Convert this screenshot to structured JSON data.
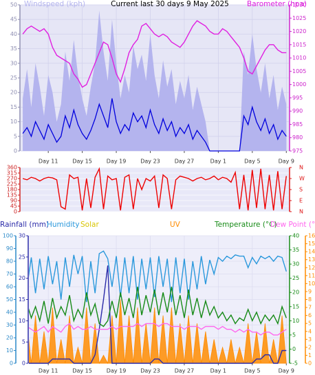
{
  "chart_data": [
    {
      "type": "line",
      "title": "Current last 30 days 9 May 2025",
      "x": [
        -1,
        -0.5,
        0,
        0.5,
        1,
        1.5,
        2,
        2.5,
        3,
        3.5,
        4,
        4.5,
        5,
        5.5,
        6,
        6.5,
        7,
        7.5,
        8,
        8.5,
        9,
        9.5,
        10,
        10.5,
        11,
        11.5,
        12,
        12.5,
        13,
        13.5,
        14,
        14.5,
        15,
        15.5,
        16,
        16.5,
        17,
        17.5,
        18,
        18.5,
        19,
        19.5,
        20,
        20.5,
        21,
        21.5,
        22,
        22.5,
        23,
        23.5,
        24,
        24.5,
        25,
        25.5,
        26,
        26.5,
        27,
        27.5,
        28,
        28.5,
        29,
        29.5,
        30
      ],
      "xlim": [
        -1.25,
        30.3
      ],
      "xticks": [
        {
          "value": 2,
          "label": "Day 11"
        },
        {
          "value": 6,
          "label": "Day 15"
        },
        {
          "value": 10,
          "label": "Day 19"
        },
        {
          "value": 14,
          "label": "Day 23"
        },
        {
          "value": 18,
          "label": "Day 27"
        },
        {
          "value": 22,
          "label": "Day 1"
        },
        {
          "value": 26,
          "label": "Day 5"
        },
        {
          "value": 30,
          "label": "Day 9"
        }
      ],
      "ylim": [
        0,
        50
      ],
      "yticks": [
        0,
        5,
        10,
        15,
        20,
        25,
        30,
        35,
        40,
        45,
        50
      ],
      "y2lim": [
        975,
        1030
      ],
      "y2ticks": [
        975,
        980,
        985,
        990,
        995,
        1000,
        1005,
        1010,
        1015,
        1020,
        1025,
        1030
      ],
      "grid": true,
      "series": [
        {
          "name": "Windspeed (kph)",
          "style": "band",
          "color": "#0000dd",
          "max_color": "#b4b4ee",
          "values": [
            6,
            8,
            5,
            10,
            7,
            4,
            9,
            6,
            3,
            5,
            12,
            8,
            14,
            9,
            6,
            4,
            7,
            11,
            16,
            12,
            8,
            18,
            10,
            6,
            9,
            7,
            13,
            10,
            12,
            8,
            14,
            9,
            6,
            11,
            7,
            10,
            5,
            8,
            6,
            9,
            4,
            7,
            5,
            3,
            0,
            0,
            0,
            0,
            0,
            0,
            0,
            0,
            12,
            9,
            15,
            10,
            7,
            11,
            6,
            9,
            4,
            7,
            5
          ],
          "max_values": [
            18,
            28,
            15,
            30,
            22,
            12,
            26,
            20,
            10,
            16,
            34,
            24,
            38,
            26,
            18,
            12,
            22,
            30,
            48,
            34,
            24,
            45,
            30,
            18,
            26,
            20,
            36,
            28,
            33,
            24,
            40,
            26,
            18,
            31,
            22,
            28,
            16,
            24,
            18,
            26,
            14,
            22,
            16,
            10,
            0,
            0,
            0,
            0,
            0,
            0,
            0,
            0,
            34,
            26,
            40,
            28,
            20,
            30,
            18,
            26,
            14,
            22,
            16
          ]
        },
        {
          "name": "Barometer (hpa)",
          "style": "line",
          "axis": "y2",
          "color": "#e020e0",
          "values": [
            1019,
            1021,
            1022,
            1021,
            1020,
            1021,
            1019,
            1014,
            1011,
            1010,
            1009,
            1008,
            1004,
            1002,
            999,
            1000,
            1004,
            1008,
            1012,
            1016,
            1015,
            1010,
            1004,
            1001,
            1006,
            1012,
            1015,
            1017,
            1022,
            1023,
            1021,
            1019,
            1018,
            1019,
            1018,
            1016,
            1015,
            1014,
            1016,
            1019,
            1022,
            1024,
            1023,
            1022,
            1020,
            1019,
            1019,
            1021,
            1020,
            1018,
            1016,
            1014,
            1010,
            1005,
            1004,
            1007,
            1010,
            1013,
            1015,
            1015,
            1013,
            1012,
            1012
          ]
        }
      ]
    },
    {
      "type": "line",
      "x": [
        -1,
        -0.5,
        0,
        0.5,
        1,
        1.5,
        2,
        2.5,
        3,
        3.5,
        4,
        4.5,
        5,
        5.5,
        6,
        6.5,
        7,
        7.5,
        8,
        8.5,
        9,
        9.5,
        10,
        10.5,
        11,
        11.5,
        12,
        12.5,
        13,
        13.5,
        14,
        14.5,
        15,
        15.5,
        16,
        16.5,
        17,
        17.5,
        18,
        18.5,
        19,
        19.5,
        20,
        20.5,
        21,
        21.5,
        22,
        22.5,
        23,
        23.5,
        24,
        24.5,
        25,
        25.5,
        26,
        26.5,
        27,
        27.5,
        28,
        28.5,
        29,
        29.5,
        30
      ],
      "xlim": [
        -1.25,
        30.3
      ],
      "ylim": [
        0,
        360
      ],
      "yticks": [
        0,
        45,
        90,
        135,
        180,
        225,
        270,
        315,
        360
      ],
      "y2lim": [
        0,
        360
      ],
      "y2ticks": [
        {
          "value": 360,
          "label": "N"
        },
        {
          "value": 270,
          "label": "W"
        },
        {
          "value": 180,
          "label": "S"
        },
        {
          "value": 90,
          "label": "E"
        },
        {
          "value": 0,
          "label": "N"
        }
      ],
      "grid": true,
      "series": [
        {
          "style": "line",
          "color": "#ee0000",
          "values": [
            270,
            260,
            280,
            270,
            250,
            270,
            280,
            275,
            260,
            40,
            20,
            300,
            270,
            280,
            10,
            270,
            30,
            280,
            350,
            20,
            290,
            260,
            270,
            10,
            280,
            300,
            20,
            270,
            180,
            270,
            250,
            290,
            30,
            300,
            270,
            20,
            260,
            290,
            280,
            270,
            250,
            270,
            280,
            260,
            270,
            290,
            260,
            280,
            270,
            240,
            320,
            20,
            300,
            10,
            340,
            30,
            350,
            20,
            300,
            10,
            330,
            20,
            290
          ]
        }
      ]
    },
    {
      "type": "line",
      "x": [
        -1,
        -0.5,
        0,
        0.5,
        1,
        1.5,
        2,
        2.5,
        3,
        3.5,
        4,
        4.5,
        5,
        5.5,
        6,
        6.5,
        7,
        7.5,
        8,
        8.5,
        9,
        9.5,
        10,
        10.5,
        11,
        11.5,
        12,
        12.5,
        13,
        13.5,
        14,
        14.5,
        15,
        15.5,
        16,
        16.5,
        17,
        17.5,
        18,
        18.5,
        19,
        19.5,
        20,
        20.5,
        21,
        21.5,
        22,
        22.5,
        23,
        23.5,
        24,
        24.5,
        25,
        25.5,
        26,
        26.5,
        27,
        27.5,
        28,
        28.5,
        29,
        29.5,
        30
      ],
      "xlim": [
        -1.25,
        30.3
      ],
      "xticks": [
        {
          "value": 2,
          "label": "Day 11"
        },
        {
          "value": 6,
          "label": "Day 15"
        },
        {
          "value": 10,
          "label": "Day 19"
        },
        {
          "value": 14,
          "label": "Day 23"
        },
        {
          "value": 18,
          "label": "Day 27"
        },
        {
          "value": 22,
          "label": "Day 1"
        },
        {
          "value": 26,
          "label": "Day 5"
        },
        {
          "value": 30,
          "label": "Day 9"
        }
      ],
      "ylim": [
        0,
        100
      ],
      "yticks": [
        0,
        10,
        20,
        30,
        40,
        50,
        60,
        70,
        80,
        90,
        100
      ],
      "y2lim": [
        0,
        30
      ],
      "y2ticks": [
        0,
        5,
        10,
        15,
        20,
        25,
        30
      ],
      "y3lim": [
        -5,
        40
      ],
      "y3ticks": [
        -5,
        0,
        5,
        10,
        15,
        20,
        25,
        30,
        35,
        40
      ],
      "y4lim": [
        0,
        16
      ],
      "y4ticks": [
        0,
        1,
        2,
        3,
        4,
        5,
        6,
        7,
        8,
        9,
        10,
        11,
        12,
        13,
        14,
        15,
        16
      ],
      "grid": true,
      "annotations": [
        "Solar"
      ],
      "series": [
        {
          "name": "Rainfall (mm)",
          "style": "line",
          "axis": "y2",
          "color": "#2a2aa8",
          "values": [
            0,
            0,
            0,
            0,
            0,
            0,
            0,
            1,
            1,
            1,
            1,
            1,
            0,
            0,
            0,
            0,
            0,
            2,
            8,
            15,
            23,
            0,
            0,
            0,
            0,
            0,
            0,
            0,
            0,
            0,
            0,
            1,
            1,
            0,
            0,
            0,
            0,
            0,
            0,
            0,
            0,
            0,
            0,
            0,
            0,
            0,
            0,
            0,
            0,
            0,
            0,
            0,
            0,
            0,
            0,
            1,
            1,
            2,
            2,
            0,
            0,
            3,
            3
          ]
        },
        {
          "name": "Humidity",
          "style": "line",
          "axis": "y",
          "color": "#2a98dc",
          "values": [
            82,
            60,
            83,
            55,
            82,
            58,
            84,
            62,
            80,
            50,
            83,
            60,
            85,
            70,
            84,
            48,
            80,
            55,
            86,
            88,
            82,
            60,
            84,
            52,
            83,
            55,
            84,
            50,
            82,
            58,
            83,
            52,
            84,
            60,
            82,
            48,
            83,
            55,
            82,
            50,
            80,
            58,
            84,
            62,
            81,
            70,
            83,
            80,
            84,
            82,
            85,
            84,
            84,
            75,
            83,
            78,
            84,
            82,
            84,
            80,
            84,
            83,
            72
          ]
        },
        {
          "name": "UV",
          "style": "area",
          "axis": "y4",
          "color": "#ff8c00",
          "values": [
            0,
            5,
            0,
            6,
            0,
            4,
            0,
            7,
            0,
            3,
            0,
            6,
            0,
            2,
            0,
            7,
            0,
            5,
            0,
            1,
            0,
            6,
            0,
            8,
            0,
            6,
            0,
            7,
            0,
            5,
            0,
            7,
            0,
            6,
            0,
            7,
            0,
            5,
            0,
            6,
            0,
            5,
            0,
            4,
            0,
            3,
            0,
            2,
            0,
            3,
            0,
            2,
            0,
            5,
            0,
            4,
            0,
            5,
            0,
            3,
            0,
            6,
            0
          ]
        },
        {
          "name": "Temperature (°C)",
          "style": "line",
          "axis": "y3",
          "color": "#168a16",
          "values": [
            10,
            16,
            11,
            15,
            10,
            17,
            9,
            18,
            11,
            15,
            12,
            19,
            10,
            14,
            11,
            20,
            12,
            16,
            9,
            8,
            10,
            17,
            11,
            20,
            12,
            18,
            11,
            22,
            12,
            19,
            13,
            21,
            12,
            20,
            13,
            22,
            12,
            19,
            11,
            21,
            12,
            18,
            11,
            17,
            12,
            15,
            11,
            13,
            10,
            12,
            9,
            11,
            10,
            14,
            10,
            13,
            9,
            12,
            10,
            12,
            9,
            15,
            11
          ]
        },
        {
          "name": "Dew Point (°C)",
          "style": "line",
          "axis": "y3",
          "color": "#ff66ee",
          "values": [
            7,
            8,
            7,
            6,
            7,
            8,
            6,
            8,
            7,
            6,
            8,
            9,
            7,
            8,
            7,
            7,
            8,
            7,
            7,
            7,
            7,
            8,
            7,
            8,
            8,
            8,
            8,
            9,
            8,
            9,
            9,
            9,
            8,
            9,
            9,
            8,
            8,
            8,
            7,
            8,
            8,
            8,
            7,
            8,
            8,
            8,
            7,
            8,
            7,
            7,
            6,
            7,
            6,
            7,
            6,
            6,
            5,
            6,
            6,
            5,
            5,
            6,
            7
          ]
        }
      ]
    }
  ]
}
